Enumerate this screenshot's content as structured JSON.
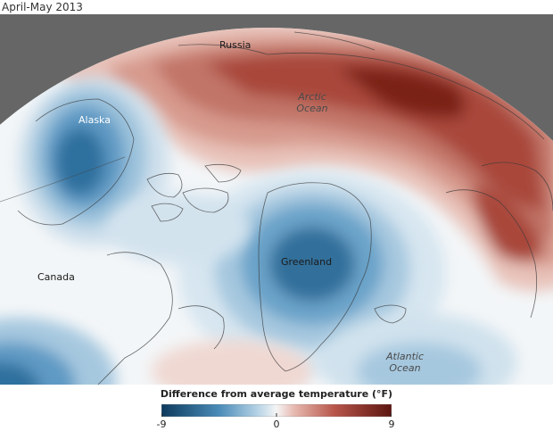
{
  "title": "April-May 2013",
  "map": {
    "labels": {
      "russia": "Russia",
      "alaska": "Alaska",
      "arctic_ocean_line1": "Arctic",
      "arctic_ocean_line2": "Ocean",
      "canada": "Canada",
      "greenland": "Greenland",
      "atlantic_ocean_line1": "Atlantic",
      "atlantic_ocean_line2": "Ocean"
    },
    "anomalies": {
      "russia_arctic": "warm",
      "alaska": "cold",
      "greenland": "cold",
      "canada_south": "cold",
      "scandinavia": "warm"
    }
  },
  "legend": {
    "title": "Difference from average temperature (°F)",
    "ticks": [
      "-9",
      "0",
      "9"
    ],
    "min": -9,
    "max": 9,
    "colors": {
      "cold_dark": "#0d3a5c",
      "cold_mid": "#4a8bb8",
      "cold_light": "#b7d4e6",
      "neutral": "#f5f5f5",
      "warm_light": "#e6b7ae",
      "warm_mid": "#b8564a",
      "warm_dark": "#5c1410",
      "space": "#666666"
    }
  }
}
